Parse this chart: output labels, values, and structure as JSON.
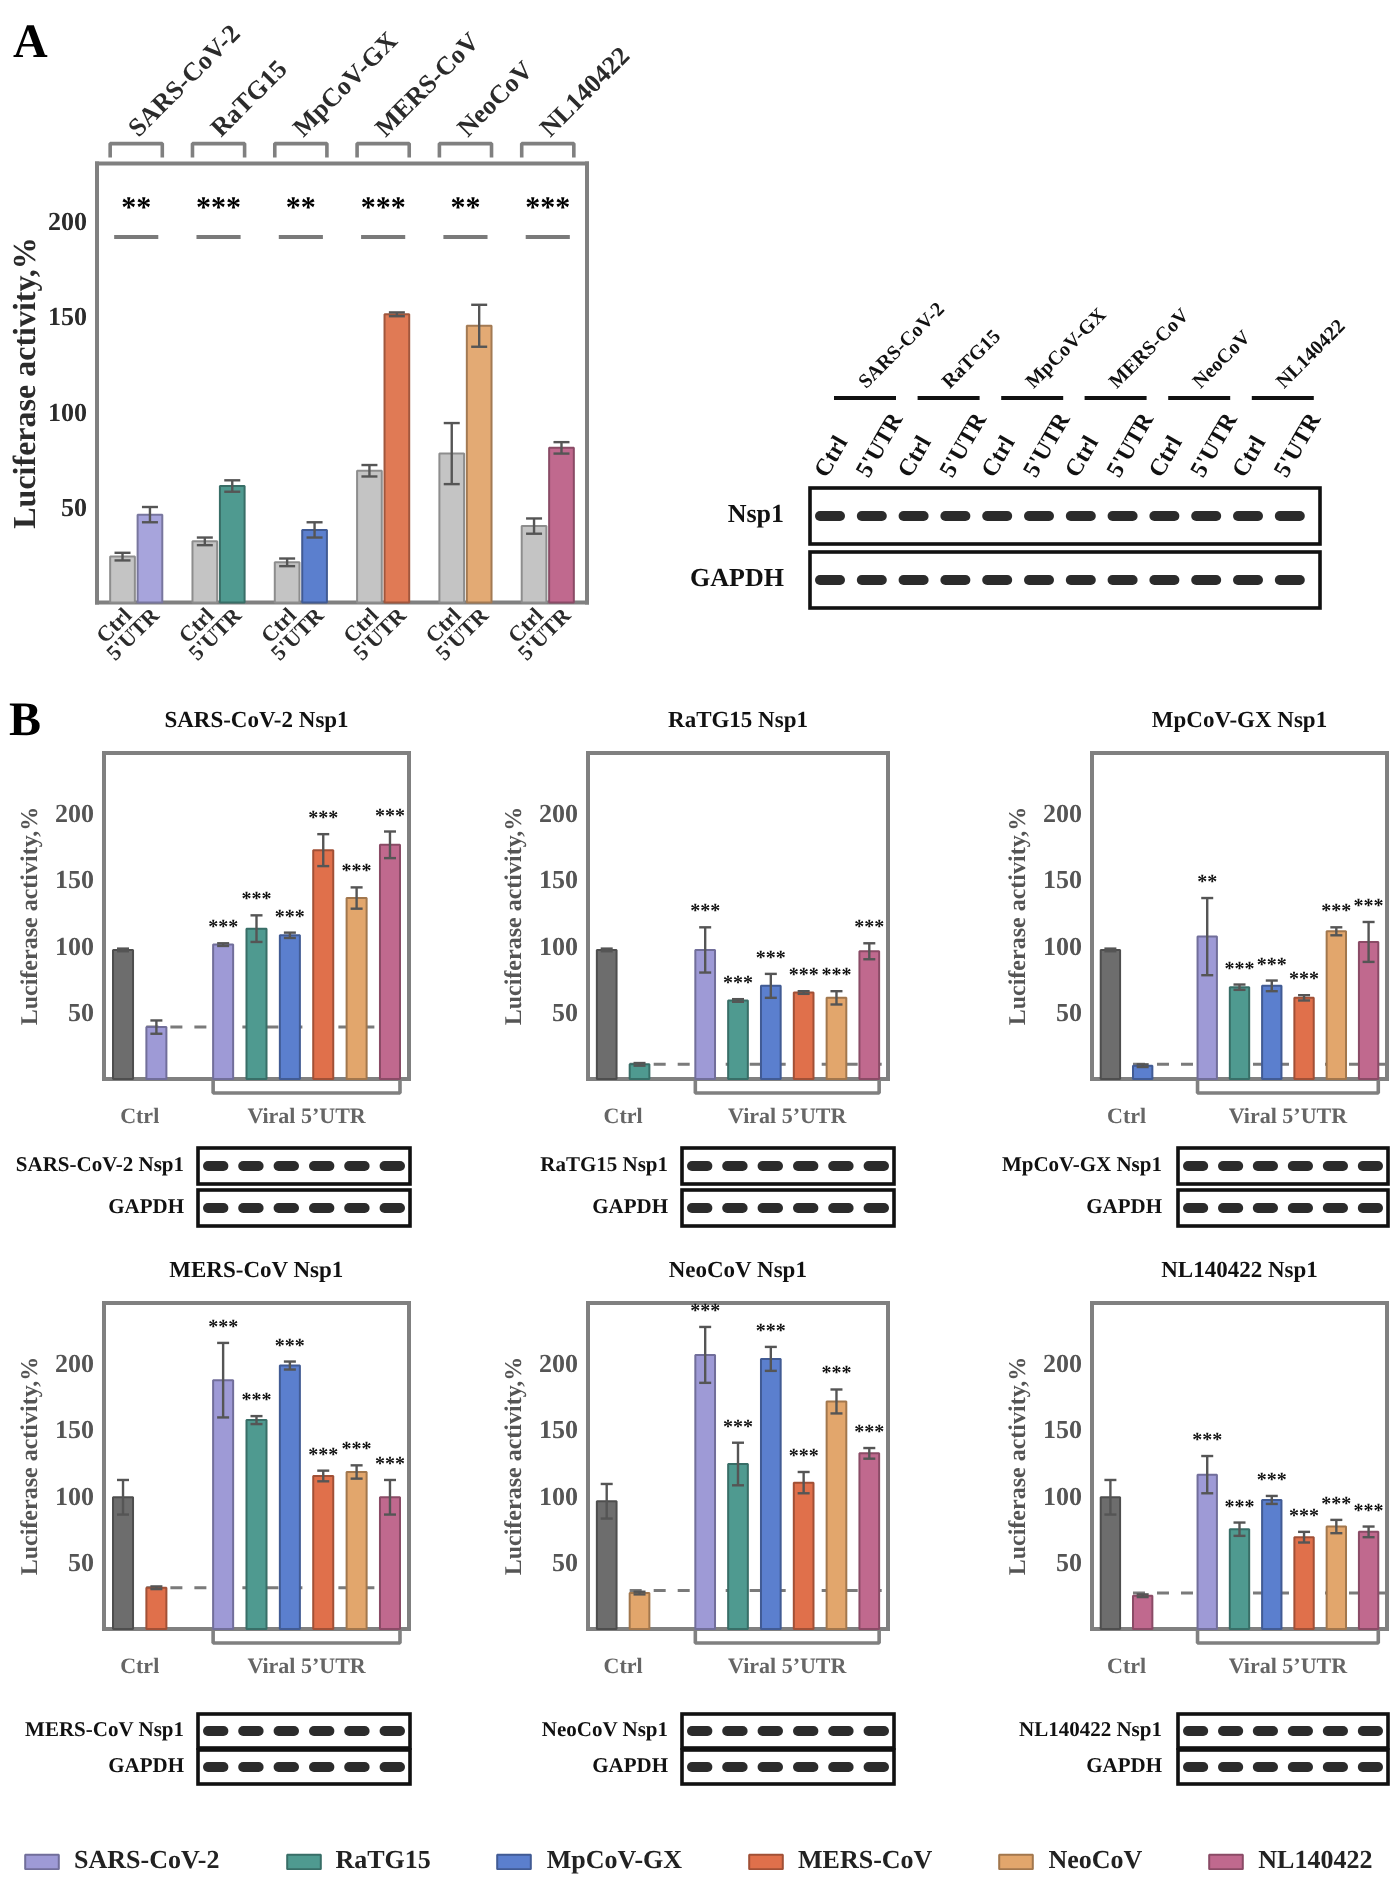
{
  "chart_data": [
    {
      "type": "bar",
      "ylabel": "Luciferase activity,%",
      "categories": [
        "SARS-CoV-2",
        "RaTG15",
        "MpCoV-GX",
        "MERS-CoV",
        "NeoCoV",
        "NL140422"
      ],
      "ylim": [
        0,
        230
      ],
      "yticks": [
        50,
        100,
        150,
        200
      ],
      "series": [
        {
          "name": "Ctrl",
          "color": "#c4c4c4",
          "values": [
            24,
            32,
            21,
            69,
            78,
            40
          ],
          "errors": [
            2,
            2,
            2,
            3,
            16,
            4
          ]
        },
        {
          "name": "5'UTR",
          "colors": [
            "#a7a4dc",
            "#4f9a90",
            "#5b7fce",
            "#e07a55",
            "#e3aa74",
            "#c0698e"
          ],
          "values": [
            46,
            61,
            38,
            151,
            145,
            81
          ],
          "errors": [
            4,
            3,
            4,
            1,
            11,
            3
          ]
        }
      ],
      "annotations": [
        "A",
        "**",
        "***",
        "**",
        "***",
        "**",
        "***"
      ]
    },
    {
      "type": "other",
      "categories": [
        "Ctrl",
        "5'UTR",
        "Ctrl",
        "5'UTR",
        "Ctrl",
        "5'UTR",
        "Ctrl",
        "5'UTR",
        "Ctrl",
        "5'UTR",
        "Ctrl",
        "5'UTR"
      ],
      "y_categories": [
        "Nsp1",
        "GAPDH"
      ],
      "annotations": [
        "SARS-CoV-2",
        "RaTG15",
        "MpCoV-GX",
        "MERS-CoV",
        "NeoCoV",
        "NL140422"
      ]
    },
    {
      "type": "bar",
      "title": "SARS-CoV-2 Nsp1",
      "ylabel": "Luciferase activity,%",
      "categories": [
        "Ctrl",
        "Viral 5’UTR"
      ],
      "ylim": [
        0,
        245
      ],
      "yticks": [
        50,
        100,
        150,
        200
      ],
      "annotations": [
        "B"
      ],
      "series": [
        {
          "color": "#6d6d6d",
          "values": [
            97,
            null
          ],
          "errors": [
            1,
            null
          ]
        },
        {
          "color": "#9e9ad6",
          "values": [
            39,
            101
          ],
          "errors": [
            5,
            1
          ],
          "value_labels": [
            null,
            "***"
          ]
        },
        {
          "color": "#4f9a90",
          "values": [
            null,
            113
          ],
          "errors": [
            null,
            10
          ],
          "value_labels": [
            null,
            "***"
          ]
        },
        {
          "color": "#5b7fce",
          "values": [
            null,
            108
          ],
          "errors": [
            null,
            2
          ],
          "value_labels": [
            null,
            "***"
          ]
        },
        {
          "color": "#e0704b",
          "values": [
            null,
            172
          ],
          "errors": [
            null,
            12
          ],
          "value_labels": [
            null,
            "***"
          ]
        },
        {
          "color": "#e2a66c",
          "values": [
            null,
            136
          ],
          "errors": [
            null,
            8
          ],
          "value_labels": [
            null,
            "***"
          ]
        },
        {
          "color": "#c0698e",
          "values": [
            null,
            176
          ],
          "errors": [
            null,
            10
          ],
          "value_labels": [
            null,
            "***"
          ]
        }
      ],
      "ref_lines": [
        {
          "axis": "y",
          "value": 39,
          "line_style": "dashed"
        }
      ]
    },
    {
      "type": "bar",
      "title": "RaTG15 Nsp1",
      "ylabel": "Luciferase activity,%",
      "categories": [
        "Ctrl",
        "Viral 5’UTR"
      ],
      "ylim": [
        0,
        245
      ],
      "yticks": [
        50,
        100,
        150,
        200
      ],
      "series": [
        {
          "color": "#6d6d6d",
          "values": [
            97,
            null
          ],
          "errors": [
            1,
            null
          ]
        },
        {
          "color": "#9e9ad6",
          "values": [
            null,
            97
          ],
          "errors": [
            null,
            17
          ],
          "value_labels": [
            null,
            "***"
          ]
        },
        {
          "color": "#4f9a90",
          "values": [
            11,
            59
          ],
          "errors": [
            1,
            1
          ],
          "value_labels": [
            null,
            "***"
          ]
        },
        {
          "color": "#5b7fce",
          "values": [
            null,
            70
          ],
          "errors": [
            null,
            9
          ],
          "value_labels": [
            null,
            "***"
          ]
        },
        {
          "color": "#e0704b",
          "values": [
            null,
            65
          ],
          "errors": [
            null,
            1
          ],
          "value_labels": [
            null,
            "***"
          ]
        },
        {
          "color": "#e2a66c",
          "values": [
            null,
            61
          ],
          "errors": [
            null,
            5
          ],
          "value_labels": [
            null,
            "***"
          ]
        },
        {
          "color": "#c0698e",
          "values": [
            null,
            96
          ],
          "errors": [
            null,
            6
          ],
          "value_labels": [
            null,
            "***"
          ]
        }
      ],
      "ref_lines": [
        {
          "axis": "y",
          "value": 11,
          "line_style": "dashed"
        }
      ]
    },
    {
      "type": "bar",
      "title": "MpCoV-GX Nsp1",
      "ylabel": "Luciferase activity,%",
      "categories": [
        "Ctrl",
        "Viral 5’UTR"
      ],
      "ylim": [
        0,
        245
      ],
      "yticks": [
        50,
        100,
        150,
        200
      ],
      "series": [
        {
          "color": "#6d6d6d",
          "values": [
            97,
            null
          ],
          "errors": [
            1,
            null
          ]
        },
        {
          "color": "#9e9ad6",
          "values": [
            null,
            107
          ],
          "errors": [
            null,
            29
          ],
          "value_labels": [
            null,
            "**"
          ]
        },
        {
          "color": "#4f9a90",
          "values": [
            null,
            69
          ],
          "errors": [
            null,
            2
          ],
          "value_labels": [
            null,
            "***"
          ]
        },
        {
          "color": "#5b7fce",
          "values": [
            10,
            70
          ],
          "errors": [
            1,
            4
          ],
          "value_labels": [
            null,
            "***"
          ]
        },
        {
          "color": "#e0704b",
          "values": [
            null,
            61
          ],
          "errors": [
            null,
            2
          ],
          "value_labels": [
            null,
            "***"
          ]
        },
        {
          "color": "#e2a66c",
          "values": [
            null,
            111
          ],
          "errors": [
            null,
            3
          ],
          "value_labels": [
            null,
            "***"
          ]
        },
        {
          "color": "#c0698e",
          "values": [
            null,
            103
          ],
          "errors": [
            null,
            15
          ],
          "value_labels": [
            null,
            "***"
          ]
        }
      ],
      "ref_lines": [
        {
          "axis": "y",
          "value": 11,
          "line_style": "dashed"
        }
      ]
    },
    {
      "type": "other",
      "y_categories": [
        "SARS-CoV-2 Nsp1",
        "GAPDH"
      ]
    },
    {
      "type": "other",
      "y_categories": [
        "RaTG15 Nsp1",
        "GAPDH"
      ]
    },
    {
      "type": "other",
      "y_categories": [
        "MpCoV-GX Nsp1",
        "GAPDH"
      ]
    },
    {
      "type": "bar",
      "title": "MERS-CoV Nsp1",
      "ylabel": "Luciferase activity,%",
      "categories": [
        "Ctrl",
        "Viral 5’UTR"
      ],
      "ylim": [
        0,
        245
      ],
      "yticks": [
        50,
        100,
        150,
        200
      ],
      "series": [
        {
          "color": "#6d6d6d",
          "values": [
            99,
            null
          ],
          "errors": [
            13,
            null
          ]
        },
        {
          "color": "#9e9ad6",
          "values": [
            null,
            187
          ],
          "errors": [
            null,
            28
          ],
          "value_labels": [
            null,
            "***"
          ]
        },
        {
          "color": "#4f9a90",
          "values": [
            null,
            157
          ],
          "errors": [
            null,
            3
          ],
          "value_labels": [
            null,
            "***"
          ]
        },
        {
          "color": "#5b7fce",
          "values": [
            null,
            198
          ],
          "errors": [
            null,
            3
          ],
          "value_labels": [
            null,
            "***"
          ]
        },
        {
          "color": "#e0704b",
          "values": [
            31,
            115
          ],
          "errors": [
            1,
            4
          ],
          "value_labels": [
            null,
            "***"
          ]
        },
        {
          "color": "#e2a66c",
          "values": [
            null,
            118
          ],
          "errors": [
            null,
            5
          ],
          "value_labels": [
            null,
            "***"
          ]
        },
        {
          "color": "#c0698e",
          "values": [
            null,
            99
          ],
          "errors": [
            null,
            13
          ],
          "value_labels": [
            null,
            "***"
          ]
        }
      ],
      "ref_lines": [
        {
          "axis": "y",
          "value": 31,
          "line_style": "dashed"
        }
      ]
    },
    {
      "type": "bar",
      "title": "NeoCoV Nsp1",
      "ylabel": "Luciferase activity,%",
      "categories": [
        "Ctrl",
        "Viral 5’UTR"
      ],
      "ylim": [
        0,
        245
      ],
      "yticks": [
        50,
        100,
        150,
        200
      ],
      "series": [
        {
          "color": "#6d6d6d",
          "values": [
            96,
            null
          ],
          "errors": [
            13,
            null
          ]
        },
        {
          "color": "#9e9ad6",
          "values": [
            null,
            206
          ],
          "errors": [
            null,
            21
          ],
          "value_labels": [
            null,
            "***"
          ]
        },
        {
          "color": "#4f9a90",
          "values": [
            null,
            124
          ],
          "errors": [
            null,
            16
          ],
          "value_labels": [
            null,
            "***"
          ]
        },
        {
          "color": "#5b7fce",
          "values": [
            null,
            203
          ],
          "errors": [
            null,
            9
          ],
          "value_labels": [
            null,
            "***"
          ]
        },
        {
          "color": "#e0704b",
          "values": [
            null,
            110
          ],
          "errors": [
            null,
            8
          ],
          "value_labels": [
            null,
            "***"
          ]
        },
        {
          "color": "#e2a66c",
          "values": [
            27,
            171
          ],
          "errors": [
            1,
            9
          ],
          "value_labels": [
            null,
            "***"
          ]
        },
        {
          "color": "#c0698e",
          "values": [
            null,
            132
          ],
          "errors": [
            null,
            4
          ],
          "value_labels": [
            null,
            "***"
          ]
        }
      ],
      "ref_lines": [
        {
          "axis": "y",
          "value": 29,
          "line_style": "dashed"
        }
      ]
    },
    {
      "type": "bar",
      "title": "NL140422 Nsp1",
      "ylabel": "Luciferase activity,%",
      "categories": [
        "Ctrl",
        "Viral 5’UTR"
      ],
      "ylim": [
        0,
        245
      ],
      "yticks": [
        50,
        100,
        150,
        200
      ],
      "legend": "bottom",
      "series": [
        {
          "color": "#6d6d6d",
          "values": [
            99,
            null
          ],
          "errors": [
            13,
            null
          ]
        },
        {
          "name": "SARS-CoV-2",
          "color": "#9e9ad6",
          "values": [
            null,
            116
          ],
          "errors": [
            null,
            14
          ],
          "value_labels": [
            null,
            "***"
          ]
        },
        {
          "name": "RaTG15",
          "color": "#4f9a90",
          "values": [
            null,
            75
          ],
          "errors": [
            null,
            5
          ],
          "value_labels": [
            null,
            "***"
          ]
        },
        {
          "name": "MpCoV-GX",
          "color": "#5b7fce",
          "values": [
            null,
            97
          ],
          "errors": [
            null,
            3
          ],
          "value_labels": [
            null,
            "***"
          ]
        },
        {
          "name": "MERS-CoV",
          "color": "#e0704b",
          "values": [
            null,
            69
          ],
          "errors": [
            null,
            4
          ],
          "value_labels": [
            null,
            "***"
          ]
        },
        {
          "name": "NeoCoV",
          "color": "#e2a66c",
          "values": [
            null,
            77
          ],
          "errors": [
            null,
            5
          ],
          "value_labels": [
            null,
            "***"
          ]
        },
        {
          "name": "NL140422",
          "color": "#c0698e",
          "values": [
            25,
            73
          ],
          "errors": [
            1,
            4
          ],
          "value_labels": [
            null,
            "***"
          ]
        }
      ],
      "ref_lines": [
        {
          "axis": "y",
          "value": 27,
          "line_style": "dashed"
        }
      ]
    },
    {
      "type": "other",
      "y_categories": [
        "MERS-CoV Nsp1",
        "GAPDH"
      ]
    },
    {
      "type": "other",
      "y_categories": [
        "NeoCoV Nsp1",
        "GAPDH"
      ]
    },
    {
      "type": "other",
      "y_categories": [
        "NL140422 Nsp1",
        "GAPDH"
      ]
    }
  ]
}
